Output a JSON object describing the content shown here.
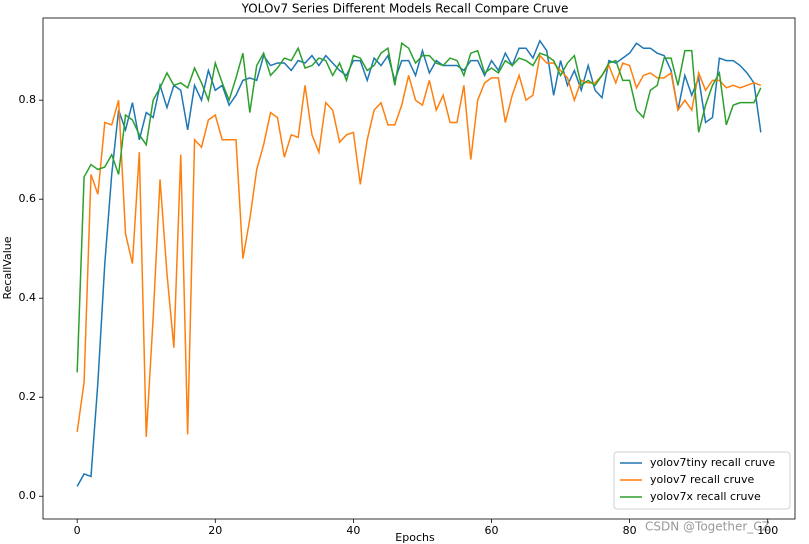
{
  "chart_data": {
    "type": "line",
    "title": "YOLOv7 Series Different Models Recall Compare Cruve",
    "xlabel": "Epochs",
    "ylabel": "RecallValue",
    "watermark": "CSDN @Together_CZ",
    "x": [
      0,
      1,
      2,
      3,
      4,
      5,
      6,
      7,
      8,
      9,
      10,
      11,
      12,
      13,
      14,
      15,
      16,
      17,
      18,
      19,
      20,
      21,
      22,
      23,
      24,
      25,
      26,
      27,
      28,
      29,
      30,
      31,
      32,
      33,
      34,
      35,
      36,
      37,
      38,
      39,
      40,
      41,
      42,
      43,
      44,
      45,
      46,
      47,
      48,
      49,
      50,
      51,
      52,
      53,
      54,
      55,
      56,
      57,
      58,
      59,
      60,
      61,
      62,
      63,
      64,
      65,
      66,
      67,
      68,
      69,
      70,
      71,
      72,
      73,
      74,
      75,
      76,
      77,
      78,
      79,
      80,
      81,
      82,
      83,
      84,
      85,
      86,
      87,
      88,
      89,
      90,
      91,
      92,
      93,
      94,
      95,
      96,
      97,
      98,
      99
    ],
    "series": [
      {
        "name": "yolov7tiny recall cruve",
        "color": "#1f77b4",
        "values": [
          0.02,
          0.045,
          0.04,
          0.23,
          0.47,
          0.65,
          0.78,
          0.74,
          0.795,
          0.72,
          0.775,
          0.765,
          0.83,
          0.785,
          0.83,
          0.82,
          0.74,
          0.83,
          0.8,
          0.86,
          0.82,
          0.83,
          0.79,
          0.81,
          0.84,
          0.845,
          0.84,
          0.89,
          0.87,
          0.875,
          0.875,
          0.86,
          0.88,
          0.875,
          0.89,
          0.87,
          0.89,
          0.875,
          0.86,
          0.85,
          0.88,
          0.88,
          0.84,
          0.885,
          0.87,
          0.89,
          0.84,
          0.88,
          0.88,
          0.85,
          0.9,
          0.855,
          0.88,
          0.87,
          0.87,
          0.87,
          0.86,
          0.88,
          0.88,
          0.85,
          0.88,
          0.86,
          0.895,
          0.87,
          0.905,
          0.905,
          0.885,
          0.92,
          0.9,
          0.81,
          0.88,
          0.83,
          0.86,
          0.82,
          0.87,
          0.82,
          0.805,
          0.88,
          0.875,
          0.885,
          0.895,
          0.915,
          0.905,
          0.905,
          0.895,
          0.89,
          0.86,
          0.78,
          0.85,
          0.81,
          0.845,
          0.755,
          0.765,
          0.885,
          0.88,
          0.88,
          0.87,
          0.855,
          0.835,
          0.735
        ]
      },
      {
        "name": "yolov7 recall cruve",
        "color": "#ff7f0e",
        "values": [
          0.13,
          0.23,
          0.65,
          0.61,
          0.755,
          0.75,
          0.8,
          0.53,
          0.47,
          0.695,
          0.12,
          0.36,
          0.64,
          0.45,
          0.3,
          0.69,
          0.125,
          0.72,
          0.705,
          0.76,
          0.77,
          0.72,
          0.72,
          0.72,
          0.48,
          0.56,
          0.66,
          0.71,
          0.775,
          0.765,
          0.685,
          0.73,
          0.725,
          0.83,
          0.73,
          0.695,
          0.795,
          0.78,
          0.715,
          0.73,
          0.735,
          0.63,
          0.72,
          0.78,
          0.795,
          0.75,
          0.75,
          0.79,
          0.85,
          0.8,
          0.79,
          0.84,
          0.78,
          0.81,
          0.755,
          0.755,
          0.83,
          0.68,
          0.8,
          0.835,
          0.845,
          0.845,
          0.755,
          0.81,
          0.85,
          0.8,
          0.81,
          0.89,
          0.875,
          0.875,
          0.86,
          0.845,
          0.8,
          0.84,
          0.835,
          0.835,
          0.85,
          0.87,
          0.835,
          0.875,
          0.87,
          0.825,
          0.85,
          0.855,
          0.845,
          0.845,
          0.855,
          0.78,
          0.8,
          0.78,
          0.855,
          0.82,
          0.84,
          0.84,
          0.825,
          0.83,
          0.825,
          0.83,
          0.835,
          0.83
        ]
      },
      {
        "name": "yolov7x recall cruve",
        "color": "#2ca02c",
        "values": [
          0.25,
          0.645,
          0.67,
          0.66,
          0.665,
          0.69,
          0.65,
          0.77,
          0.76,
          0.73,
          0.71,
          0.8,
          0.825,
          0.855,
          0.83,
          0.835,
          0.825,
          0.865,
          0.835,
          0.8,
          0.875,
          0.835,
          0.8,
          0.845,
          0.895,
          0.775,
          0.87,
          0.895,
          0.85,
          0.865,
          0.885,
          0.88,
          0.905,
          0.865,
          0.87,
          0.885,
          0.88,
          0.85,
          0.875,
          0.84,
          0.89,
          0.885,
          0.86,
          0.87,
          0.895,
          0.905,
          0.83,
          0.915,
          0.905,
          0.875,
          0.89,
          0.89,
          0.875,
          0.87,
          0.885,
          0.88,
          0.85,
          0.895,
          0.9,
          0.855,
          0.865,
          0.855,
          0.88,
          0.87,
          0.885,
          0.88,
          0.87,
          0.895,
          0.89,
          0.88,
          0.85,
          0.875,
          0.89,
          0.83,
          0.84,
          0.83,
          0.85,
          0.875,
          0.88,
          0.84,
          0.84,
          0.78,
          0.765,
          0.82,
          0.83,
          0.885,
          0.885,
          0.83,
          0.9,
          0.9,
          0.735,
          0.79,
          0.83,
          0.855,
          0.75,
          0.79,
          0.795,
          0.795,
          0.795,
          0.825
        ]
      }
    ],
    "xlim": [
      -4.95,
      103.95
    ],
    "xticks": [
      0,
      20,
      40,
      60,
      80,
      100
    ],
    "ylim": [
      -0.046,
      0.966
    ],
    "yticks": [
      {
        "value": 0,
        "label": "0.0"
      },
      0.2,
      0.4,
      0.6,
      0.8
    ],
    "legend": "lower right",
    "grid": false
  }
}
